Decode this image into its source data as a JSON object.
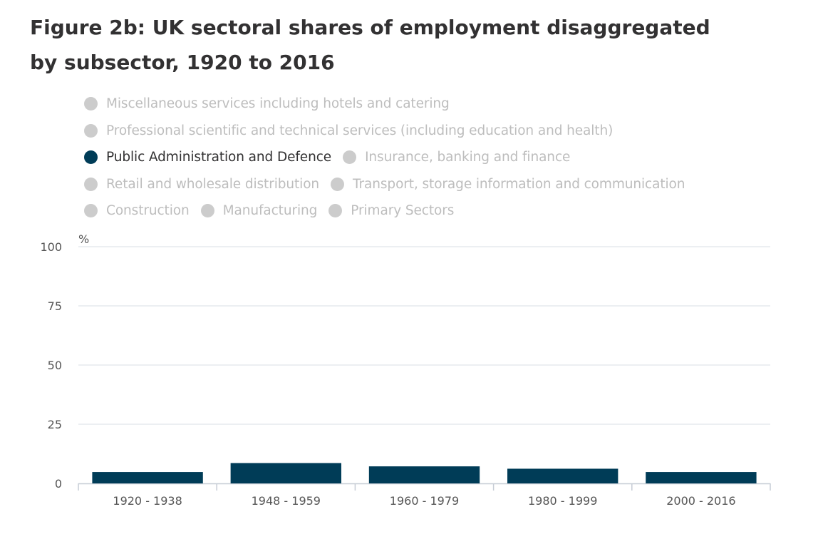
{
  "title": "Figure 2b: UK sectoral shares of employment disaggregated by subsector, 1920 to 2016",
  "legend": {
    "rows": [
      [
        {
          "label": "Miscellaneous services including hotels and catering",
          "active": false
        }
      ],
      [
        {
          "label": "Professional scientific and technical services (including education and health)",
          "active": false
        }
      ],
      [
        {
          "label": "Public Administration and Defence",
          "active": true
        },
        {
          "label": "Insurance, banking and finance",
          "active": false
        }
      ],
      [
        {
          "label": "Retail and wholesale distribution",
          "active": false
        },
        {
          "label": "Transport, storage information and communication",
          "active": false
        }
      ],
      [
        {
          "label": "Construction",
          "active": false
        },
        {
          "label": "Manufacturing",
          "active": false
        },
        {
          "label": "Primary Sectors",
          "active": false
        }
      ]
    ]
  },
  "colors": {
    "active_series": "#003c57",
    "inactive_dot": "#cccccc",
    "active_text": "#323132",
    "inactive_text": "#bdbdbd",
    "gridline": "#d9dfe6",
    "axis_text": "#555555"
  },
  "chart_data": {
    "type": "bar",
    "categories": [
      "1920 - 1938",
      "1948 - 1959",
      "1960 - 1979",
      "1980 - 1999",
      "2000 - 2016"
    ],
    "series": [
      {
        "name": "Public Administration and Defence",
        "values": [
          4.8,
          8.6,
          7.2,
          6.2,
          4.8
        ]
      }
    ],
    "ylabel": "%",
    "ylim": [
      0,
      100
    ],
    "yticks": [
      0,
      25,
      50,
      75,
      100
    ],
    "grid": true,
    "legend_position": "top"
  }
}
